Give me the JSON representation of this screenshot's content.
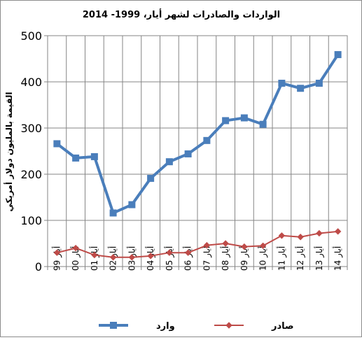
{
  "chart_data": {
    "type": "line",
    "title": "الواردات والصادرات لشهر أيار،  1999- 2014",
    "ylabel": "القيمة بالمليون دولار أمريكي",
    "xlabel": "",
    "ylim": [
      0,
      500
    ],
    "yticks": [
      0,
      100,
      200,
      300,
      400,
      500
    ],
    "grid": true,
    "legend_position": "bottom",
    "categories": [
      "أيار 99",
      "أيار 00",
      "أيار 01",
      "أيار 02",
      "أيار 03",
      "أيار 04",
      "أيار 05",
      "أيار 06",
      "أيار 07",
      "أيار 08",
      "أيار 09",
      "أيار 10",
      "أيار 11",
      "أيار 12",
      "أيار 13",
      "أيار 14"
    ],
    "series": [
      {
        "name": "وارد",
        "color": "#4a7ebb",
        "marker": "square",
        "values": [
          266,
          235,
          238,
          116,
          134,
          191,
          227,
          244,
          273,
          316,
          322,
          308,
          397,
          386,
          397,
          459
        ]
      },
      {
        "name": "صادر",
        "color": "#be4b48",
        "marker": "diamond",
        "values": [
          30,
          40,
          25,
          20,
          20,
          23,
          30,
          30,
          46,
          50,
          43,
          45,
          67,
          64,
          72,
          76
        ]
      }
    ]
  }
}
